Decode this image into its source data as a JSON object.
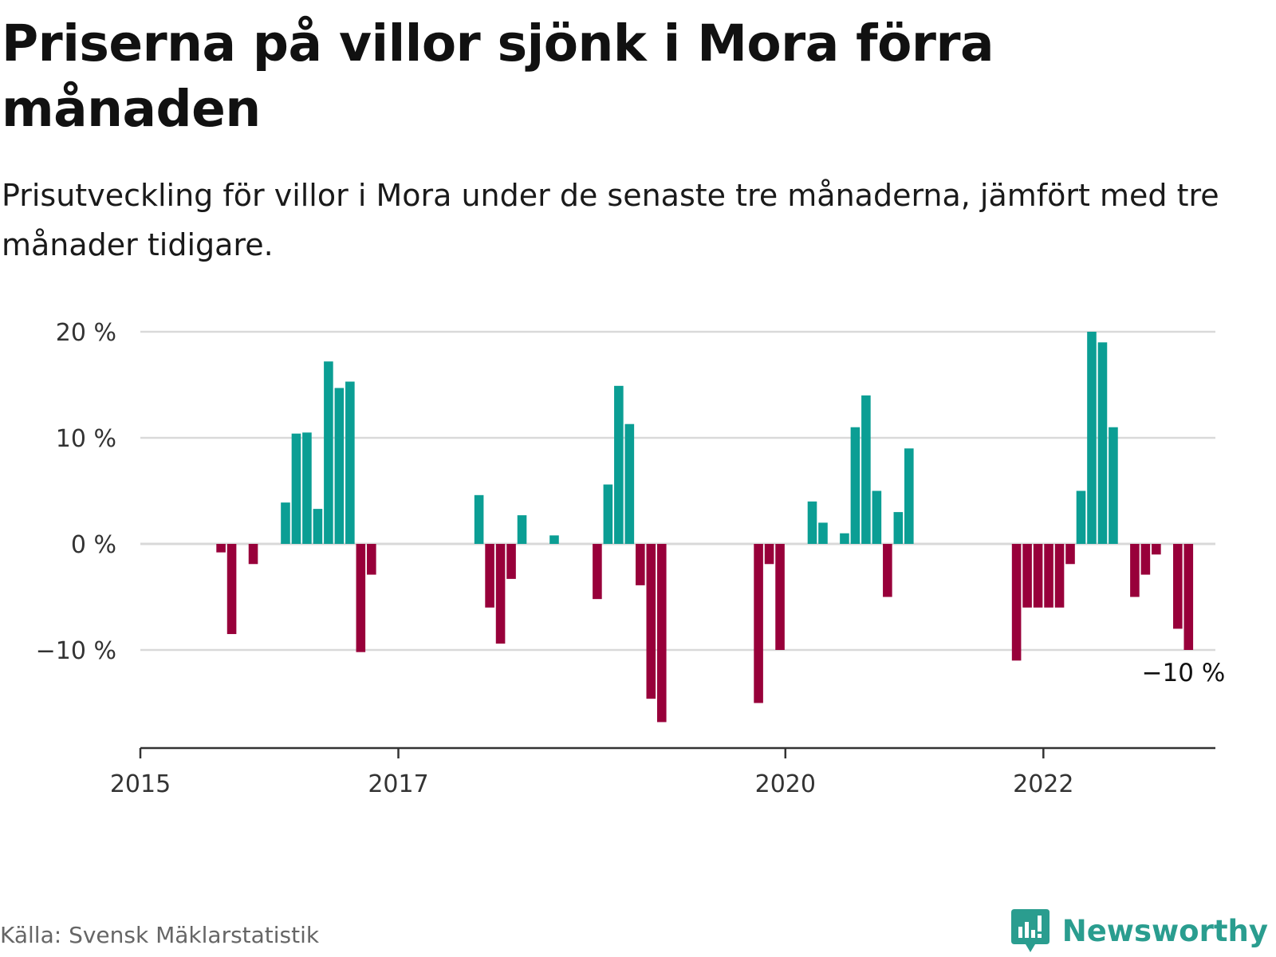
{
  "header": {
    "title": "Priserna på villor sjönk i Mora förra månaden",
    "subtitle": "Prisutveckling för villor i Mora under de senaste tre månaderna, jämfört med tre månader tidigare."
  },
  "footer": {
    "source": "Källa: Svensk Mäklarstatistik",
    "brand": "Newsworthy"
  },
  "colors": {
    "positive": "#0b9e94",
    "negative": "#98003a",
    "grid": "#d9d9d9",
    "axis": "#333333",
    "brand": "#2a9d8f"
  },
  "chart_data": {
    "type": "bar",
    "title": "Priserna på villor sjönk i Mora förra månaden",
    "subtitle": "Prisutveckling för villor i Mora under de senaste tre månaderna, jämfört med tre månader tidigare.",
    "xlabel": "",
    "ylabel": "",
    "x_unit": "month",
    "xlim": [
      "2015-01",
      "2023-05"
    ],
    "ylim": [
      -19,
      20
    ],
    "y_ticks": [
      20,
      10,
      0,
      -10
    ],
    "y_tick_labels": [
      "20 %",
      "10 %",
      "0 %",
      "−10 %"
    ],
    "x_ticks": [
      "2015-01",
      "2017-01",
      "2020-01",
      "2022-01"
    ],
    "x_tick_labels": [
      "2015",
      "2017",
      "2020",
      "2022"
    ],
    "grid": true,
    "end_label": "−10 %",
    "series": [
      {
        "points": [
          {
            "x": "2015-08",
            "y": -0.8
          },
          {
            "x": "2015-09",
            "y": -8.5
          },
          {
            "x": "2015-11",
            "y": -1.9
          },
          {
            "x": "2016-02",
            "y": 3.9
          },
          {
            "x": "2016-03",
            "y": 10.4
          },
          {
            "x": "2016-04",
            "y": 10.5
          },
          {
            "x": "2016-05",
            "y": 3.3
          },
          {
            "x": "2016-06",
            "y": 17.2
          },
          {
            "x": "2016-07",
            "y": 14.7
          },
          {
            "x": "2016-08",
            "y": 15.3
          },
          {
            "x": "2016-09",
            "y": -10.2
          },
          {
            "x": "2016-10",
            "y": -2.9
          },
          {
            "x": "2017-08",
            "y": 4.6
          },
          {
            "x": "2017-09",
            "y": -6.0
          },
          {
            "x": "2017-10",
            "y": -9.4
          },
          {
            "x": "2017-11",
            "y": -3.3
          },
          {
            "x": "2017-12",
            "y": 2.7
          },
          {
            "x": "2018-03",
            "y": 0.8
          },
          {
            "x": "2018-07",
            "y": -5.2
          },
          {
            "x": "2018-08",
            "y": 5.6
          },
          {
            "x": "2018-09",
            "y": 14.9
          },
          {
            "x": "2018-10",
            "y": 11.3
          },
          {
            "x": "2018-11",
            "y": -3.9
          },
          {
            "x": "2018-12",
            "y": -14.6
          },
          {
            "x": "2019-01",
            "y": -16.8
          },
          {
            "x": "2019-10",
            "y": -15.0
          },
          {
            "x": "2019-11",
            "y": -1.9
          },
          {
            "x": "2019-12",
            "y": -10.0
          },
          {
            "x": "2020-03",
            "y": 4.0
          },
          {
            "x": "2020-04",
            "y": 2.0
          },
          {
            "x": "2020-06",
            "y": 1.0
          },
          {
            "x": "2020-07",
            "y": 11.0
          },
          {
            "x": "2020-08",
            "y": 14.0
          },
          {
            "x": "2020-09",
            "y": 5.0
          },
          {
            "x": "2020-10",
            "y": -5.0
          },
          {
            "x": "2020-11",
            "y": 3.0
          },
          {
            "x": "2020-12",
            "y": 9.0
          },
          {
            "x": "2021-10",
            "y": -11.0
          },
          {
            "x": "2021-11",
            "y": -6.0
          },
          {
            "x": "2021-12",
            "y": -6.0
          },
          {
            "x": "2022-01",
            "y": -6.0
          },
          {
            "x": "2022-02",
            "y": -6.0
          },
          {
            "x": "2022-03",
            "y": -1.9
          },
          {
            "x": "2022-04",
            "y": 5.0
          },
          {
            "x": "2022-05",
            "y": 20.0
          },
          {
            "x": "2022-06",
            "y": 19.0
          },
          {
            "x": "2022-07",
            "y": 11.0
          },
          {
            "x": "2022-09",
            "y": -5.0
          },
          {
            "x": "2022-10",
            "y": -2.9
          },
          {
            "x": "2022-11",
            "y": -1.0
          },
          {
            "x": "2023-01",
            "y": -8.0
          },
          {
            "x": "2023-02",
            "y": -10.0
          }
        ]
      }
    ]
  }
}
